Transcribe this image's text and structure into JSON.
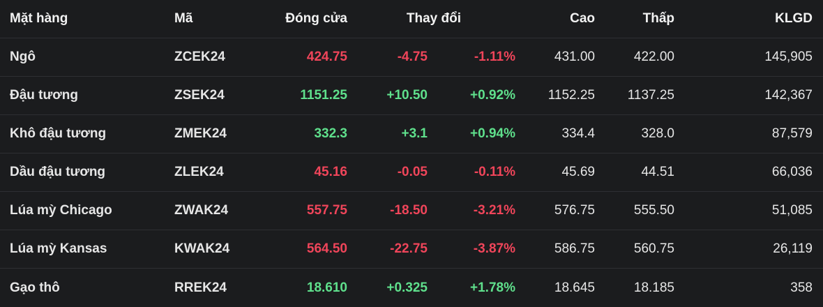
{
  "colors": {
    "up": "#5fe08c",
    "down": "#f0455a",
    "background": "#1b1c1e"
  },
  "headers": {
    "name": "Mặt hàng",
    "code": "Mã",
    "close": "Đóng cửa",
    "change": "Thay đổi",
    "high": "Cao",
    "low": "Thấp",
    "volume": "KLGD"
  },
  "rows": [
    {
      "name": "Ngô",
      "code": "ZCEK24",
      "close": "424.75",
      "change": "-4.75",
      "pct": "-1.11%",
      "high": "431.00",
      "low": "422.00",
      "volume": "145,905",
      "direction": "down"
    },
    {
      "name": "Đậu tương",
      "code": "ZSEK24",
      "close": "1151.25",
      "change": "+10.50",
      "pct": "+0.92%",
      "high": "1152.25",
      "low": "1137.25",
      "volume": "142,367",
      "direction": "up"
    },
    {
      "name": "Khô đậu tương",
      "code": "ZMEK24",
      "close": "332.3",
      "change": "+3.1",
      "pct": "+0.94%",
      "high": "334.4",
      "low": "328.0",
      "volume": "87,579",
      "direction": "up"
    },
    {
      "name": "Dầu đậu tương",
      "code": "ZLEK24",
      "close": "45.16",
      "change": "-0.05",
      "pct": "-0.11%",
      "high": "45.69",
      "low": "44.51",
      "volume": "66,036",
      "direction": "down"
    },
    {
      "name": "Lúa mỳ Chicago",
      "code": "ZWAK24",
      "close": "557.75",
      "change": "-18.50",
      "pct": "-3.21%",
      "high": "576.75",
      "low": "555.50",
      "volume": "51,085",
      "direction": "down"
    },
    {
      "name": "Lúa mỳ Kansas",
      "code": "KWAK24",
      "close": "564.50",
      "change": "-22.75",
      "pct": "-3.87%",
      "high": "586.75",
      "low": "560.75",
      "volume": "26,119",
      "direction": "down"
    },
    {
      "name": "Gạo thô",
      "code": "RREK24",
      "close": "18.610",
      "change": "+0.325",
      "pct": "+1.78%",
      "high": "18.645",
      "low": "18.185",
      "volume": "358",
      "direction": "up"
    }
  ]
}
